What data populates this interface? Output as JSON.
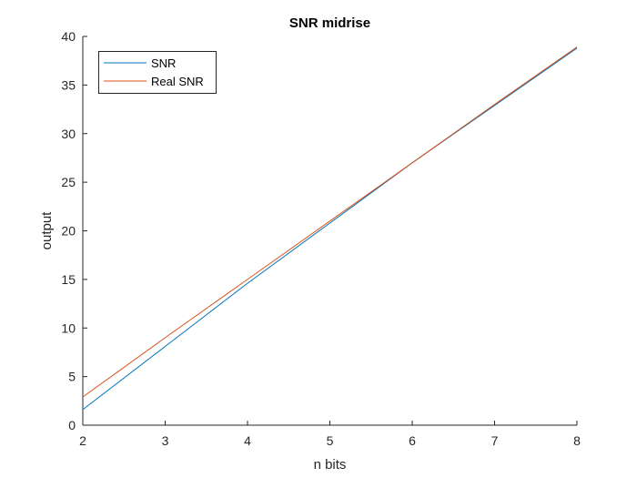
{
  "chart_data": {
    "type": "line",
    "title": "SNR midrise",
    "xlabel": "n bits",
    "ylabel": "output",
    "xlim": [
      2,
      8
    ],
    "ylim": [
      0,
      40
    ],
    "xticks": [
      "2",
      "3",
      "4",
      "5",
      "6",
      "7",
      "8"
    ],
    "yticks": [
      "0",
      "5",
      "10",
      "15",
      "20",
      "25",
      "30",
      "35",
      "40"
    ],
    "grid": false,
    "legend_position": "top-left",
    "series": [
      {
        "name": "SNR",
        "color": "#0072BD",
        "x": [
          2,
          3,
          4,
          5,
          6,
          7,
          8
        ],
        "y": [
          1.6,
          8.1,
          14.6,
          20.8,
          27.0,
          32.9,
          38.8
        ]
      },
      {
        "name": "Real SNR",
        "color": "#D95319",
        "x": [
          2,
          3,
          4,
          5,
          6,
          7,
          8
        ],
        "y": [
          2.9,
          9.0,
          15.0,
          21.0,
          27.0,
          33.0,
          38.9
        ]
      }
    ]
  }
}
